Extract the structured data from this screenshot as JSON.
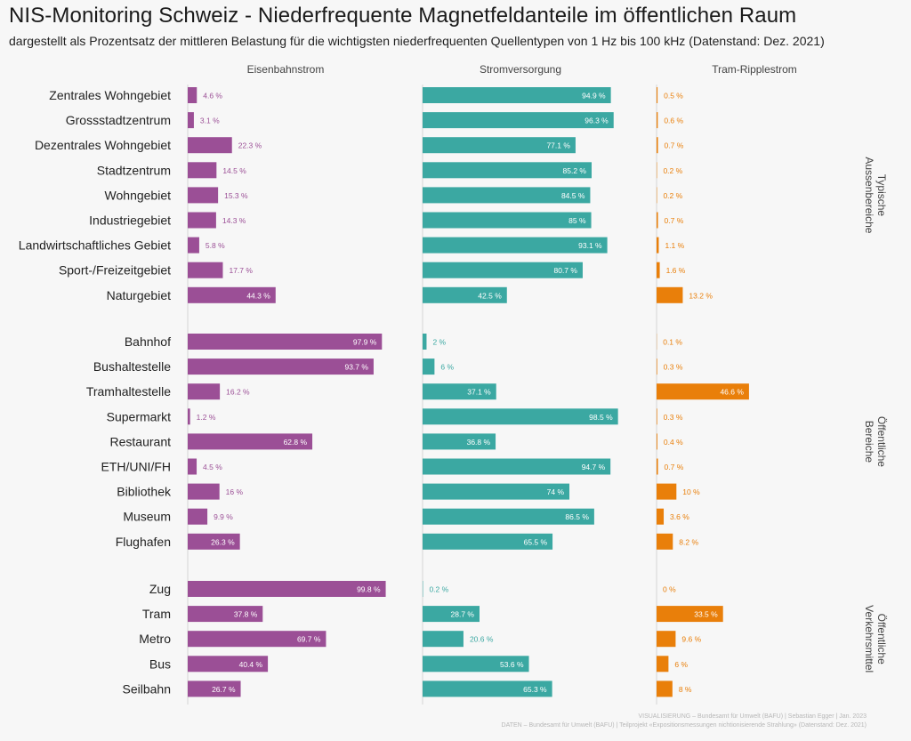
{
  "title": "NIS-Monitoring Schweiz - Niederfrequente Magnetfeldanteile im öffentlichen Raum",
  "subtitle": "dargestellt als Prozentsatz der mittleren Belastung für die wichtigsten niederfrequenten Quellentypen von 1 Hz bis 100 kHz (Datenstand: Dez. 2021)",
  "credits": [
    "VISUALISIERUNG – Bundesamt für Umwelt (BAFU) | Sebastian Egger | Jan. 2023",
    "DATEN – Bundesamt für Umwelt (BAFU) | Teilprojekt «Expositionsmessungen nichtionisierende Strahlung» (Datenstand: Dez. 2021)"
  ],
  "colors": {
    "eisenbahnstrom": "#9b4f96",
    "stromversorgung": "#3ba8a2",
    "tram_ripplestrom": "#e97f0a"
  },
  "chart_data": {
    "type": "bar",
    "orientation": "horizontal",
    "value_suffix": " %",
    "xlim": [
      0,
      100
    ],
    "series": [
      {
        "name": "Eisenbahnstrom",
        "color_key": "eisenbahnstrom"
      },
      {
        "name": "Stromversorgung",
        "color_key": "stromversorgung"
      },
      {
        "name": "Tram-Ripplestrom",
        "color_key": "tram_ripplestrom"
      }
    ],
    "groups": [
      {
        "name": "Typische Aussenbereiche",
        "rows": [
          {
            "category": "Zentrales Wohngebiet",
            "values": [
              4.6,
              94.9,
              0.5
            ]
          },
          {
            "category": "Grossstadtzentrum",
            "values": [
              3.1,
              96.3,
              0.6
            ]
          },
          {
            "category": "Dezentrales Wohngebiet",
            "values": [
              22.3,
              77.1,
              0.7
            ]
          },
          {
            "category": "Stadtzentrum",
            "values": [
              14.5,
              85.2,
              0.2
            ]
          },
          {
            "category": "Wohngebiet",
            "values": [
              15.3,
              84.5,
              0.2
            ]
          },
          {
            "category": "Industriegebiet",
            "values": [
              14.3,
              85,
              0.7
            ]
          },
          {
            "category": "Landwirtschaftliches Gebiet",
            "values": [
              5.8,
              93.1,
              1.1
            ]
          },
          {
            "category": "Sport-/Freizeitgebiet",
            "values": [
              17.7,
              80.7,
              1.6
            ]
          },
          {
            "category": "Naturgebiet",
            "values": [
              44.3,
              42.5,
              13.2
            ]
          }
        ]
      },
      {
        "name": "Öffentliche Bereiche",
        "rows": [
          {
            "category": "Bahnhof",
            "values": [
              97.9,
              2,
              0.1
            ]
          },
          {
            "category": "Bushaltestelle",
            "values": [
              93.7,
              6,
              0.3
            ]
          },
          {
            "category": "Tramhaltestelle",
            "values": [
              16.2,
              37.1,
              46.6
            ]
          },
          {
            "category": "Supermarkt",
            "values": [
              1.2,
              98.5,
              0.3
            ]
          },
          {
            "category": "Restaurant",
            "values": [
              62.8,
              36.8,
              0.4
            ]
          },
          {
            "category": "ETH/UNI/FH",
            "values": [
              4.5,
              94.7,
              0.7
            ]
          },
          {
            "category": "Bibliothek",
            "values": [
              16,
              74,
              10
            ]
          },
          {
            "category": "Museum",
            "values": [
              9.9,
              86.5,
              3.6
            ]
          },
          {
            "category": "Flughafen",
            "values": [
              26.3,
              65.5,
              8.2
            ]
          }
        ]
      },
      {
        "name": "Öffentliche Verkehrsmittel",
        "rows": [
          {
            "category": "Zug",
            "values": [
              99.8,
              0.2,
              0
            ]
          },
          {
            "category": "Tram",
            "values": [
              37.8,
              28.7,
              33.5
            ]
          },
          {
            "category": "Metro",
            "values": [
              69.7,
              20.6,
              9.6
            ]
          },
          {
            "category": "Bus",
            "values": [
              40.4,
              53.6,
              6
            ]
          },
          {
            "category": "Seilbahn",
            "values": [
              26.7,
              65.3,
              8
            ]
          }
        ]
      }
    ]
  }
}
